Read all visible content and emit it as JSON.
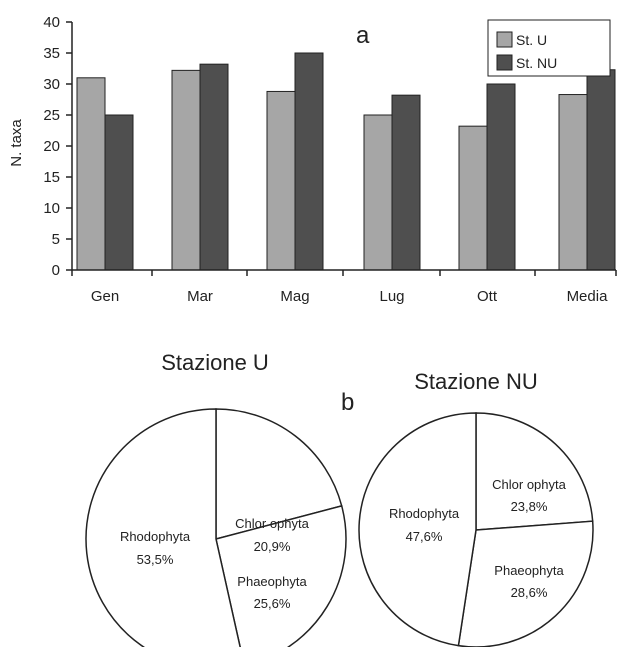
{
  "colors": {
    "st_u": "#a6a6a6",
    "st_nu": "#4f4f4f",
    "pie_fill": "#ffffff",
    "stroke": "#222222"
  },
  "chart_data": [
    {
      "type": "bar",
      "panel": "a",
      "categories": [
        "Gen",
        "Mar",
        "Mag",
        "Lug",
        "Ott",
        "Media"
      ],
      "series": [
        {
          "name": "St. U",
          "values": [
            31,
            32.2,
            28.8,
            25,
            23.2,
            28.3
          ]
        },
        {
          "name": "St. NU",
          "values": [
            25,
            33.2,
            35,
            28.2,
            30,
            32.3
          ]
        }
      ],
      "ylabel": "N. taxa",
      "ylim": [
        0,
        40
      ],
      "yticks": [
        "0",
        "5",
        "10",
        "15",
        "20",
        "25",
        "30",
        "35",
        "40"
      ],
      "grid": false,
      "legend": "top-right"
    },
    {
      "type": "pie",
      "panel": "b",
      "title": "Stazione U",
      "slices": [
        {
          "label": "Chlorophyta",
          "value_text": "20,9%",
          "value": 20.9
        },
        {
          "label": "Phaeophyta",
          "value_text": "25,6%",
          "value": 25.6
        },
        {
          "label": "Rhodophyta",
          "value_text": "53,5%",
          "value": 53.5
        }
      ]
    },
    {
      "type": "pie",
      "panel": "b",
      "title": "Stazione NU",
      "slices": [
        {
          "label": "Chlorophyta",
          "value_text": "23,8%",
          "value": 23.8
        },
        {
          "label": "Phaeophyta",
          "value_text": "28,6%",
          "value": 28.6
        },
        {
          "label": "Rhodophyta",
          "value_text": "47,6%",
          "value": 47.6
        }
      ]
    }
  ],
  "labels": {
    "panel_a": "a",
    "panel_b": "b",
    "pie_u_chlor_name": "Chlor ophyta",
    "pie_nu_chlor_name": "Chlor ophyta"
  }
}
